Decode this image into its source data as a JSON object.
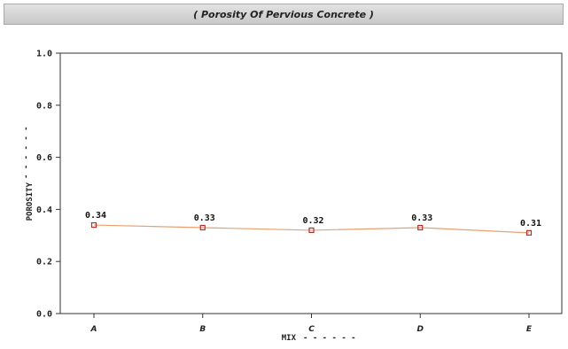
{
  "chart_data": {
    "type": "line",
    "title": "( Porosity Of Pervious Concrete )",
    "xlabel": "MIX",
    "ylabel": "POROSITY",
    "categories": [
      "A",
      "B",
      "C",
      "D",
      "E"
    ],
    "values": [
      0.34,
      0.33,
      0.32,
      0.33,
      0.31
    ],
    "data_labels": [
      "0.34",
      "0.33",
      "0.32",
      "0.33",
      "0.31"
    ],
    "y_ticks": [
      "0.0",
      "0.2",
      "0.4",
      "0.6",
      "0.8",
      "1.0"
    ],
    "ylim": [
      0,
      1.0
    ],
    "grid": false,
    "legend": "none",
    "colors": {
      "line": "#e8a070",
      "marker": "#b03028",
      "plot_background": "#ffffff",
      "title_bar": "#d4d4d4"
    }
  }
}
